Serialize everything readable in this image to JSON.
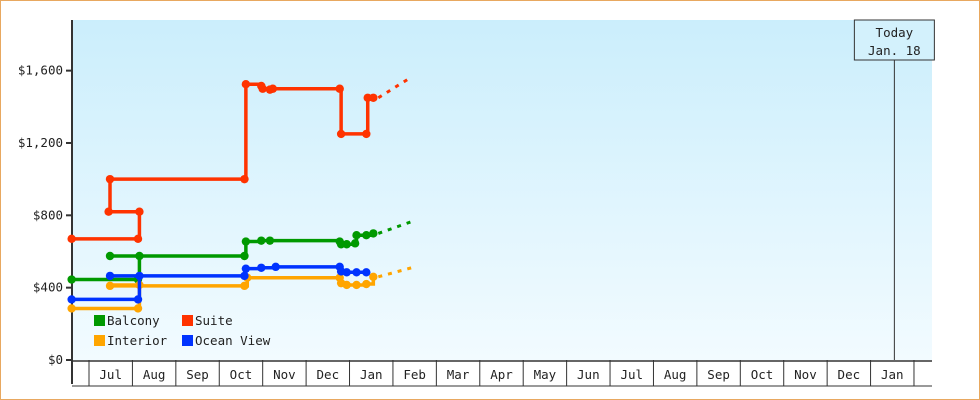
{
  "chart_data": {
    "type": "line",
    "step": true,
    "title": "",
    "xlabel": "",
    "ylabel": "",
    "ylim": [
      0,
      1880
    ],
    "y_ticks": [
      "$0",
      "$400",
      "$800",
      "$1,200",
      "$1,600"
    ],
    "y_tick_values": [
      0,
      400,
      800,
      1200,
      1600
    ],
    "x_range": [
      "Jun 19",
      "Feb 13"
    ],
    "x_ticks": [
      "Jul",
      "Aug",
      "Sep",
      "Oct",
      "Nov",
      "Dec",
      "Jan",
      "Feb",
      "Mar",
      "Apr",
      "May",
      "Jun",
      "Jul",
      "Aug",
      "Sep",
      "Oct",
      "Nov",
      "Dec",
      "Jan"
    ],
    "grid": false,
    "legend_placement": "bottom-left",
    "today": {
      "line1": "Today",
      "line2": "Jan. 18",
      "date": "Jan 18"
    },
    "series": [
      {
        "name": "Balcony",
        "color": "#009900",
        "points": [
          [
            "Jun 19",
            445
          ],
          [
            "Aug 5",
            445
          ],
          [
            "Aug 6",
            575
          ],
          [
            "Jul 16",
            575
          ],
          [
            "Oct 19",
            575
          ],
          [
            "Oct 20",
            655
          ],
          [
            "Oct 31",
            660
          ],
          [
            "Nov 6",
            660
          ],
          [
            "Dec 25",
            655
          ],
          [
            "Dec 26",
            640
          ],
          [
            "Dec 30",
            640
          ],
          [
            "Jan 5",
            645
          ],
          [
            "Jan 6",
            690
          ],
          [
            "Jan 13",
            690
          ],
          [
            "Jan 18",
            700
          ]
        ],
        "projection": [
          "Feb 13",
          765
        ]
      },
      {
        "name": "Suite",
        "color": "#ff3300",
        "points": [
          [
            "Jun 19",
            670
          ],
          [
            "Aug 5",
            670
          ],
          [
            "Aug 6",
            820
          ],
          [
            "Jul 15",
            820
          ],
          [
            "Jul 16",
            1000
          ],
          [
            "Oct 19",
            1000
          ],
          [
            "Oct 20",
            1525
          ],
          [
            "Oct 31",
            1515
          ],
          [
            "Nov 1",
            1500
          ],
          [
            "Nov 6",
            1495
          ],
          [
            "Nov 8",
            1500
          ],
          [
            "Dec 25",
            1500
          ],
          [
            "Dec 26",
            1250
          ],
          [
            "Jan 13",
            1250
          ],
          [
            "Jan 14",
            1450
          ],
          [
            "Jan 18",
            1450
          ]
        ],
        "projection": [
          "Feb 13",
          1565
        ]
      },
      {
        "name": "Interior",
        "color": "#ffa500",
        "points": [
          [
            "Jun 19",
            285
          ],
          [
            "Aug 5",
            285
          ],
          [
            "Aug 6",
            415
          ],
          [
            "Jul 16",
            410
          ],
          [
            "Oct 19",
            410
          ],
          [
            "Oct 21",
            455
          ],
          [
            "Dec 25",
            455
          ],
          [
            "Dec 26",
            425
          ],
          [
            "Dec 30",
            415
          ],
          [
            "Jan 6",
            415
          ],
          [
            "Jan 13",
            420
          ],
          [
            "Jan 18",
            460
          ]
        ],
        "projection": [
          "Feb 13",
          510
        ]
      },
      {
        "name": "Ocean View",
        "color": "#0033ff",
        "points": [
          [
            "Jun 19",
            335
          ],
          [
            "Aug 5",
            335
          ],
          [
            "Aug 6",
            465
          ],
          [
            "Jul 16",
            465
          ],
          [
            "Oct 19",
            465
          ],
          [
            "Oct 20",
            505
          ],
          [
            "Oct 31",
            510
          ],
          [
            "Nov 10",
            515
          ],
          [
            "Dec 25",
            515
          ],
          [
            "Dec 26",
            490
          ],
          [
            "Dec 30",
            485
          ],
          [
            "Jan 6",
            485
          ],
          [
            "Jan 13",
            485
          ]
        ]
      }
    ]
  }
}
